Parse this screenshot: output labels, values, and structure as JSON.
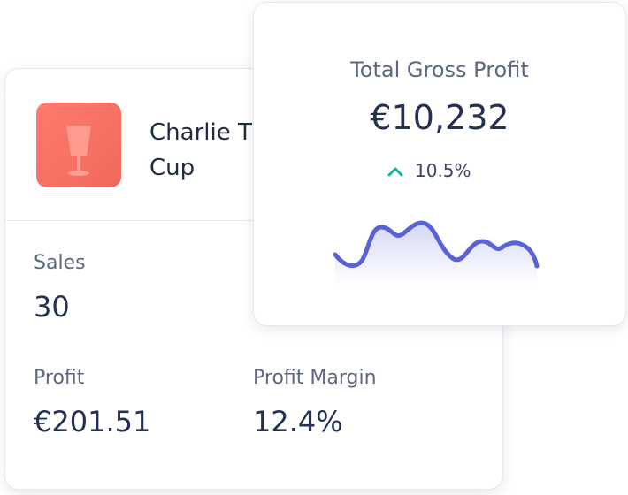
{
  "product_card": {
    "name_lines": [
      "Charlie T",
      "Cup"
    ],
    "stats": [
      {
        "label": "Sales",
        "value": "30"
      },
      {
        "label": "Profit",
        "value": "€201.51"
      },
      {
        "label": "Profit Margin",
        "value": "12.4%"
      }
    ]
  },
  "gross_profit_card": {
    "title": "Total Gross Profit",
    "value": "€10,232",
    "change": "10.5%"
  }
}
